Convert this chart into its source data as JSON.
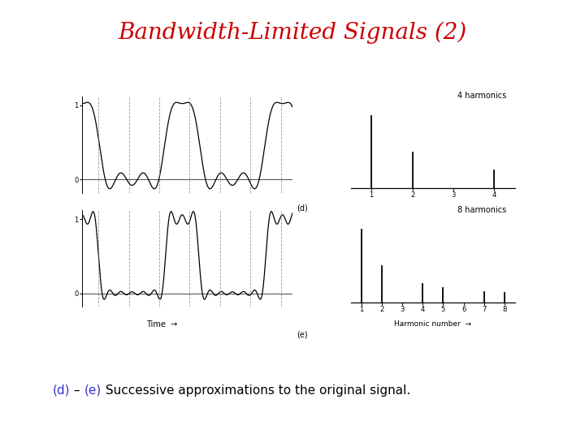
{
  "title": "Bandwidth-Limited Signals (2)",
  "title_color": "#cc0000",
  "background_color": "#ffffff",
  "panel_d_label": "(d)",
  "panel_e_label": "(e)",
  "harmonics_4_label": "4 harmonics",
  "harmonics_8_label": "8 harmonics",
  "xlabel_time": "Time",
  "xlabel_harmonic": "Harmonic number",
  "caption_text": " Successive approximations to the original signal.",
  "title_fontsize": 20,
  "caption_fontsize": 11
}
